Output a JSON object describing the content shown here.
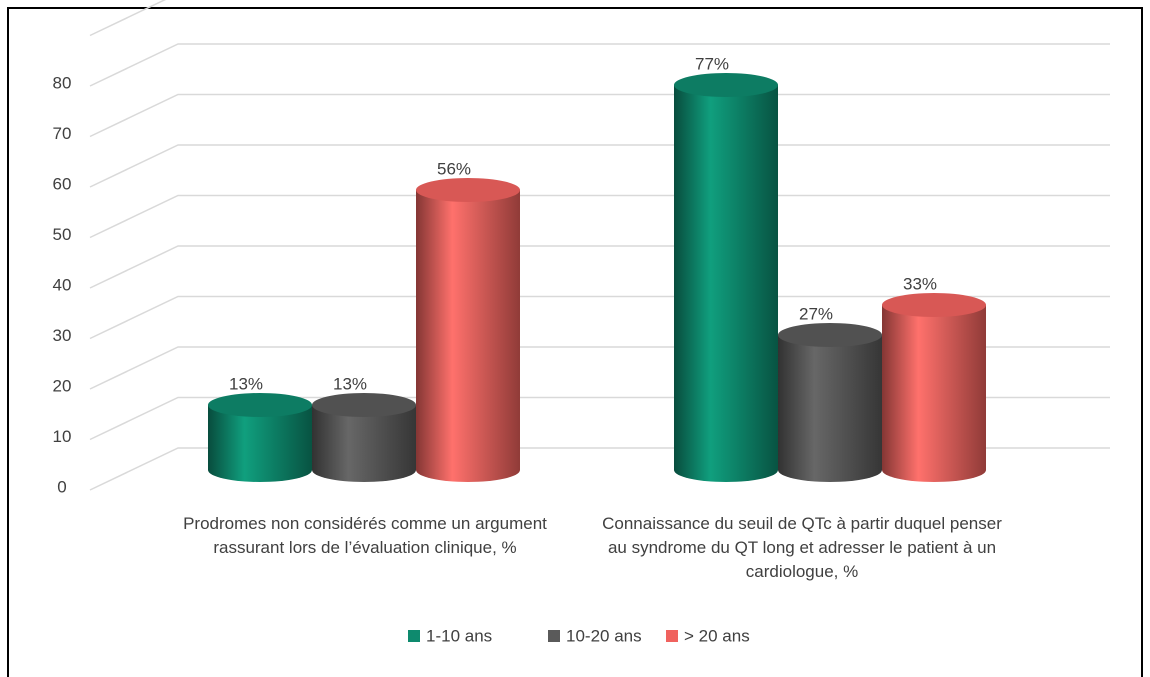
{
  "chart_data": {
    "type": "bar3d",
    "categories": [
      "Prodromes non considérés comme un argument rassurant lors de l’évaluation clinique, %",
      "Connaissance du seuil de QTc à partir duquel penser au syndrome du QT long et adresser le patient à un cardiologue, %"
    ],
    "series": [
      {
        "name": "1-10 ans",
        "color": "#0e8a6e",
        "values": [
          13,
          77
        ],
        "value_labels": [
          "13%",
          "77%"
        ]
      },
      {
        "name": "10-20 ans",
        "color": "#5a5a5a",
        "values": [
          13,
          27
        ],
        "value_labels": [
          "13%",
          "27%"
        ]
      },
      {
        "name": "> 20 ans",
        "color": "#f0625e",
        "values": [
          56,
          33
        ],
        "value_labels": [
          "56%",
          "33%"
        ]
      }
    ],
    "ylim": [
      0,
      90
    ],
    "yticks": [
      0,
      10,
      20,
      30,
      40,
      50,
      60,
      70,
      80
    ],
    "grid": true,
    "legend": "bottom"
  }
}
